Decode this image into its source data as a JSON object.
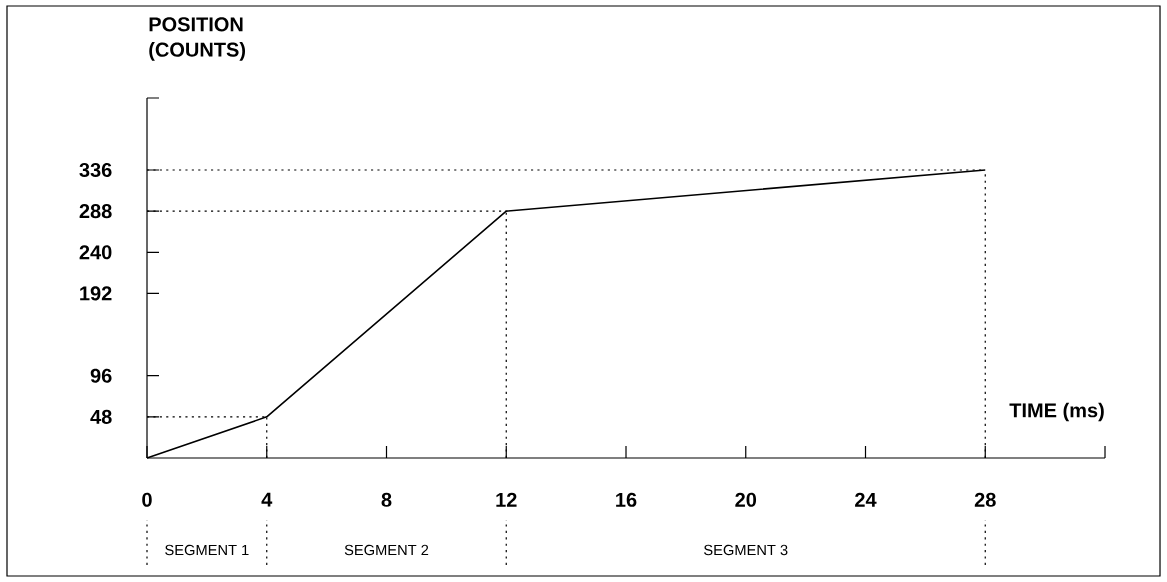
{
  "chart_data": {
    "type": "line",
    "xlabel": "TIME (ms)",
    "ylabel": "POSITION (COUNTS)",
    "x": [
      0,
      4,
      12,
      28
    ],
    "values": [
      0,
      48,
      288,
      336
    ],
    "color": "#000000",
    "xlim": [
      0,
      32
    ],
    "xticks": [
      0,
      4,
      8,
      12,
      16,
      20,
      24,
      28,
      {
        "value": 32,
        "label": null
      }
    ],
    "ylim": [
      0,
      420
    ],
    "yticks": [
      48,
      96,
      192,
      240,
      288,
      336,
      {
        "value": 420,
        "label": null
      }
    ],
    "ref_lines": [
      {
        "axis": "y",
        "value": 48,
        "line_style": "dotted"
      },
      {
        "axis": "y",
        "value": 288,
        "line_style": "dotted"
      },
      {
        "axis": "y",
        "value": 336,
        "line_style": "dotted"
      },
      {
        "axis": "x",
        "value": 4,
        "line_style": "dotted"
      },
      {
        "axis": "x",
        "value": 12,
        "line_style": "dotted"
      },
      {
        "axis": "x",
        "value": 28,
        "line_style": "dotted"
      }
    ],
    "annotations": [
      "SEGMENT 1",
      "SEGMENT 2",
      "SEGMENT 3"
    ],
    "line_style": "solid",
    "grid": false,
    "marker": "none"
  }
}
